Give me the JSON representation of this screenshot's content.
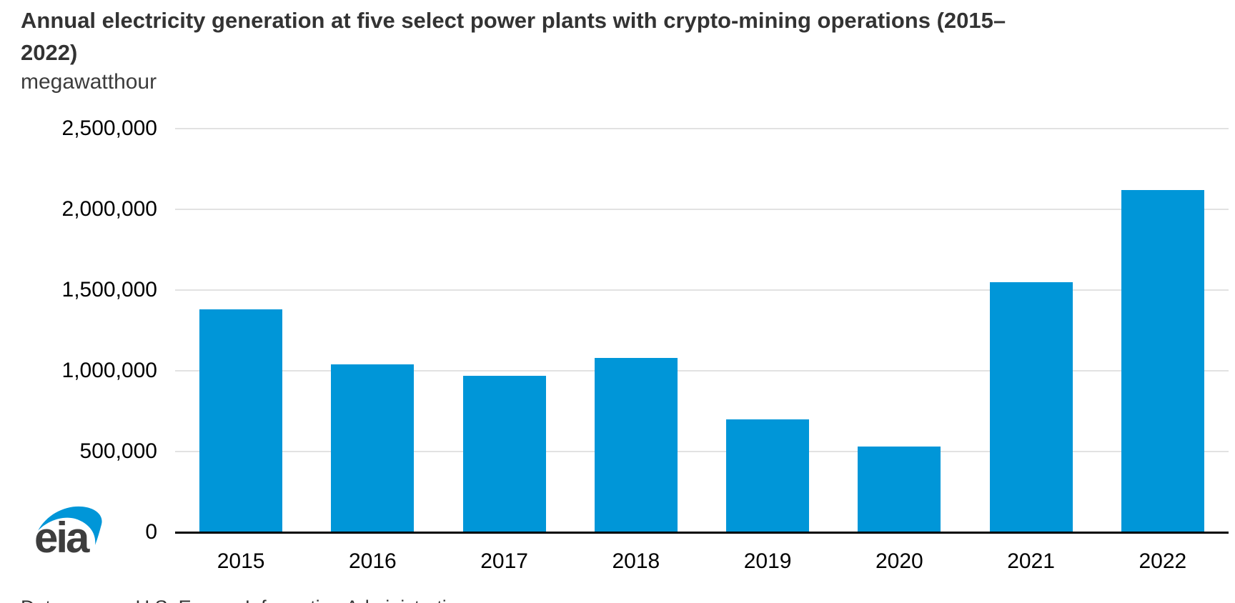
{
  "header": {
    "title_line1": "Annual electricity generation at five select power plants with crypto-mining operations (2015–",
    "title_line2": "2022)",
    "subtitle": "megawatthour"
  },
  "logo": {
    "text": "eia"
  },
  "footer": {
    "source_note": "Data source: U.S. Energy Information Administration"
  },
  "colors": {
    "bar": "#0096d8",
    "gridline": "#e2e2e2",
    "axis": "#000000",
    "title_text": "#333333",
    "tick_text": "#000000",
    "logo_text": "#3d3d3d",
    "logo_swoosh": "#0096d8"
  },
  "chart_data": {
    "type": "bar",
    "title": "Annual electricity generation at five select power plants with crypto-mining operations (2015–2022)",
    "ylabel": "megawatthour",
    "xlabel": "",
    "categories": [
      "2015",
      "2016",
      "2017",
      "2018",
      "2019",
      "2020",
      "2021",
      "2022"
    ],
    "values": [
      1380000,
      1040000,
      970000,
      1080000,
      700000,
      530000,
      1550000,
      2120000
    ],
    "ylim": [
      0,
      2500000
    ],
    "ytick_step": 500000,
    "ytick_labels": [
      "0",
      "500,000",
      "1,000,000",
      "1,500,000",
      "2,000,000",
      "2,500,000"
    ],
    "grid": true,
    "legend": null,
    "bar_color": "#0096d8"
  }
}
